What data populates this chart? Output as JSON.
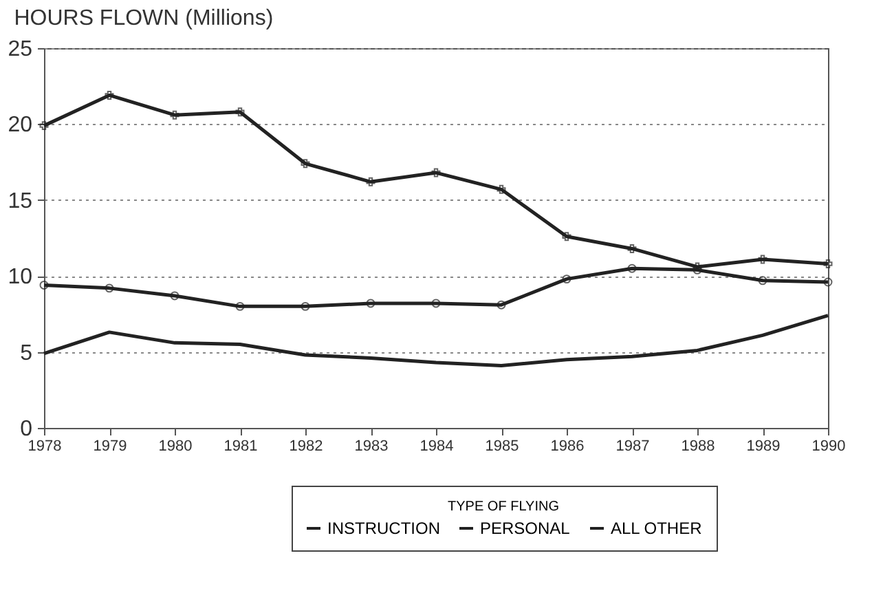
{
  "chart_data": {
    "type": "line",
    "title": "HOURS FLOWN (Millions)",
    "legend_title": "TYPE OF FLYING",
    "x": [
      1978,
      1979,
      1980,
      1981,
      1982,
      1983,
      1984,
      1985,
      1986,
      1987,
      1988,
      1989,
      1990
    ],
    "series": [
      {
        "name": "INSTRUCTION",
        "color": "#222222",
        "marker": "none",
        "values": [
          4.9,
          6.3,
          5.6,
          5.5,
          4.8,
          4.6,
          4.3,
          4.1,
          4.5,
          4.7,
          5.1,
          6.1,
          7.4
        ]
      },
      {
        "name": "PERSONAL",
        "color": "#222222",
        "marker": "circle",
        "values": [
          9.4,
          9.2,
          8.7,
          8.0,
          8.0,
          8.2,
          8.2,
          8.1,
          9.8,
          10.5,
          10.4,
          9.7,
          9.6
        ]
      },
      {
        "name": "ALL OTHER",
        "color": "#222222",
        "marker": "cross",
        "values": [
          19.9,
          21.9,
          20.6,
          20.8,
          17.4,
          16.2,
          16.8,
          15.7,
          12.6,
          11.8,
          10.6,
          11.1,
          10.8
        ]
      }
    ],
    "xlim": [
      1978,
      1990
    ],
    "xticks": [
      1978,
      1979,
      1980,
      1981,
      1982,
      1983,
      1984,
      1985,
      1986,
      1987,
      1988,
      1989,
      1990
    ],
    "ylim": [
      0,
      25
    ],
    "yticks": [
      0,
      5,
      10,
      15,
      20,
      25
    ],
    "grid": "y",
    "legend": "bottom",
    "line_style": "solid"
  }
}
